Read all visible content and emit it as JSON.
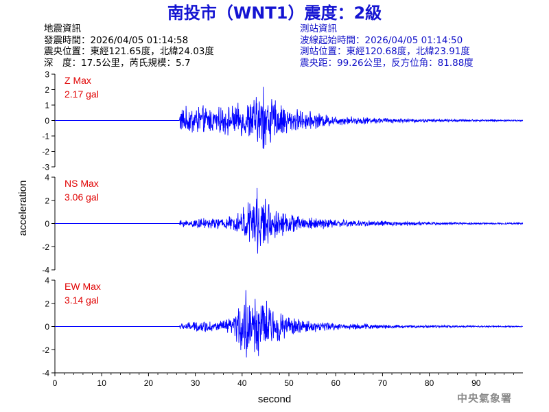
{
  "title": "南投市（WNT1）震度：2級",
  "event_info": {
    "heading": "地震資訊",
    "origin_time": "發震時間：2026/04/05 01:14:58",
    "epicenter": "震央位置：東經121.65度，北緯24.03度",
    "depth_magnitude": "深　度：17.5公里，芮氏規模：5.7"
  },
  "station_info": {
    "heading": "測站資訊",
    "wave_start": "波線起始時間：2026/04/05 01:14:50",
    "station_location": "測站位置：東經120.68度，北緯23.91度",
    "distance_azimuth": "震央距：99.26公里，反方位角：81.88度"
  },
  "footer": "中央氣象署",
  "colors": {
    "title": "#1414d2",
    "trace": "#0000ff",
    "max_label": "#e00000",
    "station_text": "#1010c8"
  },
  "chart_data": {
    "type": "line",
    "xlabel": "second",
    "ylabel": "acceleration",
    "xlim": [
      0,
      100
    ],
    "xticks": [
      0,
      10,
      20,
      30,
      40,
      50,
      60,
      70,
      80,
      90
    ],
    "panels": [
      {
        "name": "Z",
        "max_label": "Z Max",
        "max_value": "2.17 gal",
        "peak": 2.17,
        "ylim": [
          -3,
          3
        ],
        "yticks": [
          3,
          2,
          1,
          0,
          -1,
          -2,
          -3
        ],
        "onset": 26.6,
        "peak_time": 44.5,
        "envelope": [
          [
            26.6,
            0.9
          ],
          [
            30,
            1.1
          ],
          [
            35,
            0.9
          ],
          [
            40,
            1.2
          ],
          [
            43,
            1.8
          ],
          [
            45,
            2.1
          ],
          [
            47,
            1.5
          ],
          [
            50,
            0.9
          ],
          [
            55,
            0.6
          ],
          [
            60,
            0.35
          ],
          [
            70,
            0.2
          ],
          [
            80,
            0.12
          ],
          [
            90,
            0.08
          ],
          [
            100,
            0.06
          ]
        ]
      },
      {
        "name": "NS",
        "max_label": "NS Max",
        "max_value": "3.06 gal",
        "peak": 3.06,
        "ylim": [
          -4,
          4
        ],
        "yticks": [
          4,
          2,
          0,
          -2,
          -4
        ],
        "onset": 26.6,
        "peak_time": 43.2,
        "envelope": [
          [
            26.6,
            0.3
          ],
          [
            30,
            0.45
          ],
          [
            35,
            0.55
          ],
          [
            38,
            0.7
          ],
          [
            40,
            1.6
          ],
          [
            42,
            2.4
          ],
          [
            43.5,
            3.0
          ],
          [
            45,
            2.3
          ],
          [
            47,
            1.4
          ],
          [
            50,
            0.9
          ],
          [
            55,
            0.6
          ],
          [
            60,
            0.4
          ],
          [
            70,
            0.25
          ],
          [
            80,
            0.15
          ],
          [
            90,
            0.1
          ],
          [
            100,
            0.08
          ]
        ]
      },
      {
        "name": "EW",
        "max_label": "EW Max",
        "max_value": "3.14 gal",
        "peak": 3.14,
        "ylim": [
          -4,
          4
        ],
        "yticks": [
          4,
          2,
          0,
          -2,
          -4
        ],
        "onset": 26.6,
        "peak_time": 40.8,
        "envelope": [
          [
            26.6,
            0.3
          ],
          [
            30,
            0.5
          ],
          [
            35,
            0.55
          ],
          [
            38,
            0.8
          ],
          [
            40,
            2.6
          ],
          [
            41.5,
            3.1
          ],
          [
            43,
            2.8
          ],
          [
            45,
            2.4
          ],
          [
            47,
            1.7
          ],
          [
            50,
            0.9
          ],
          [
            55,
            0.55
          ],
          [
            60,
            0.35
          ],
          [
            70,
            0.2
          ],
          [
            80,
            0.12
          ],
          [
            90,
            0.08
          ],
          [
            100,
            0.06
          ]
        ]
      }
    ]
  }
}
